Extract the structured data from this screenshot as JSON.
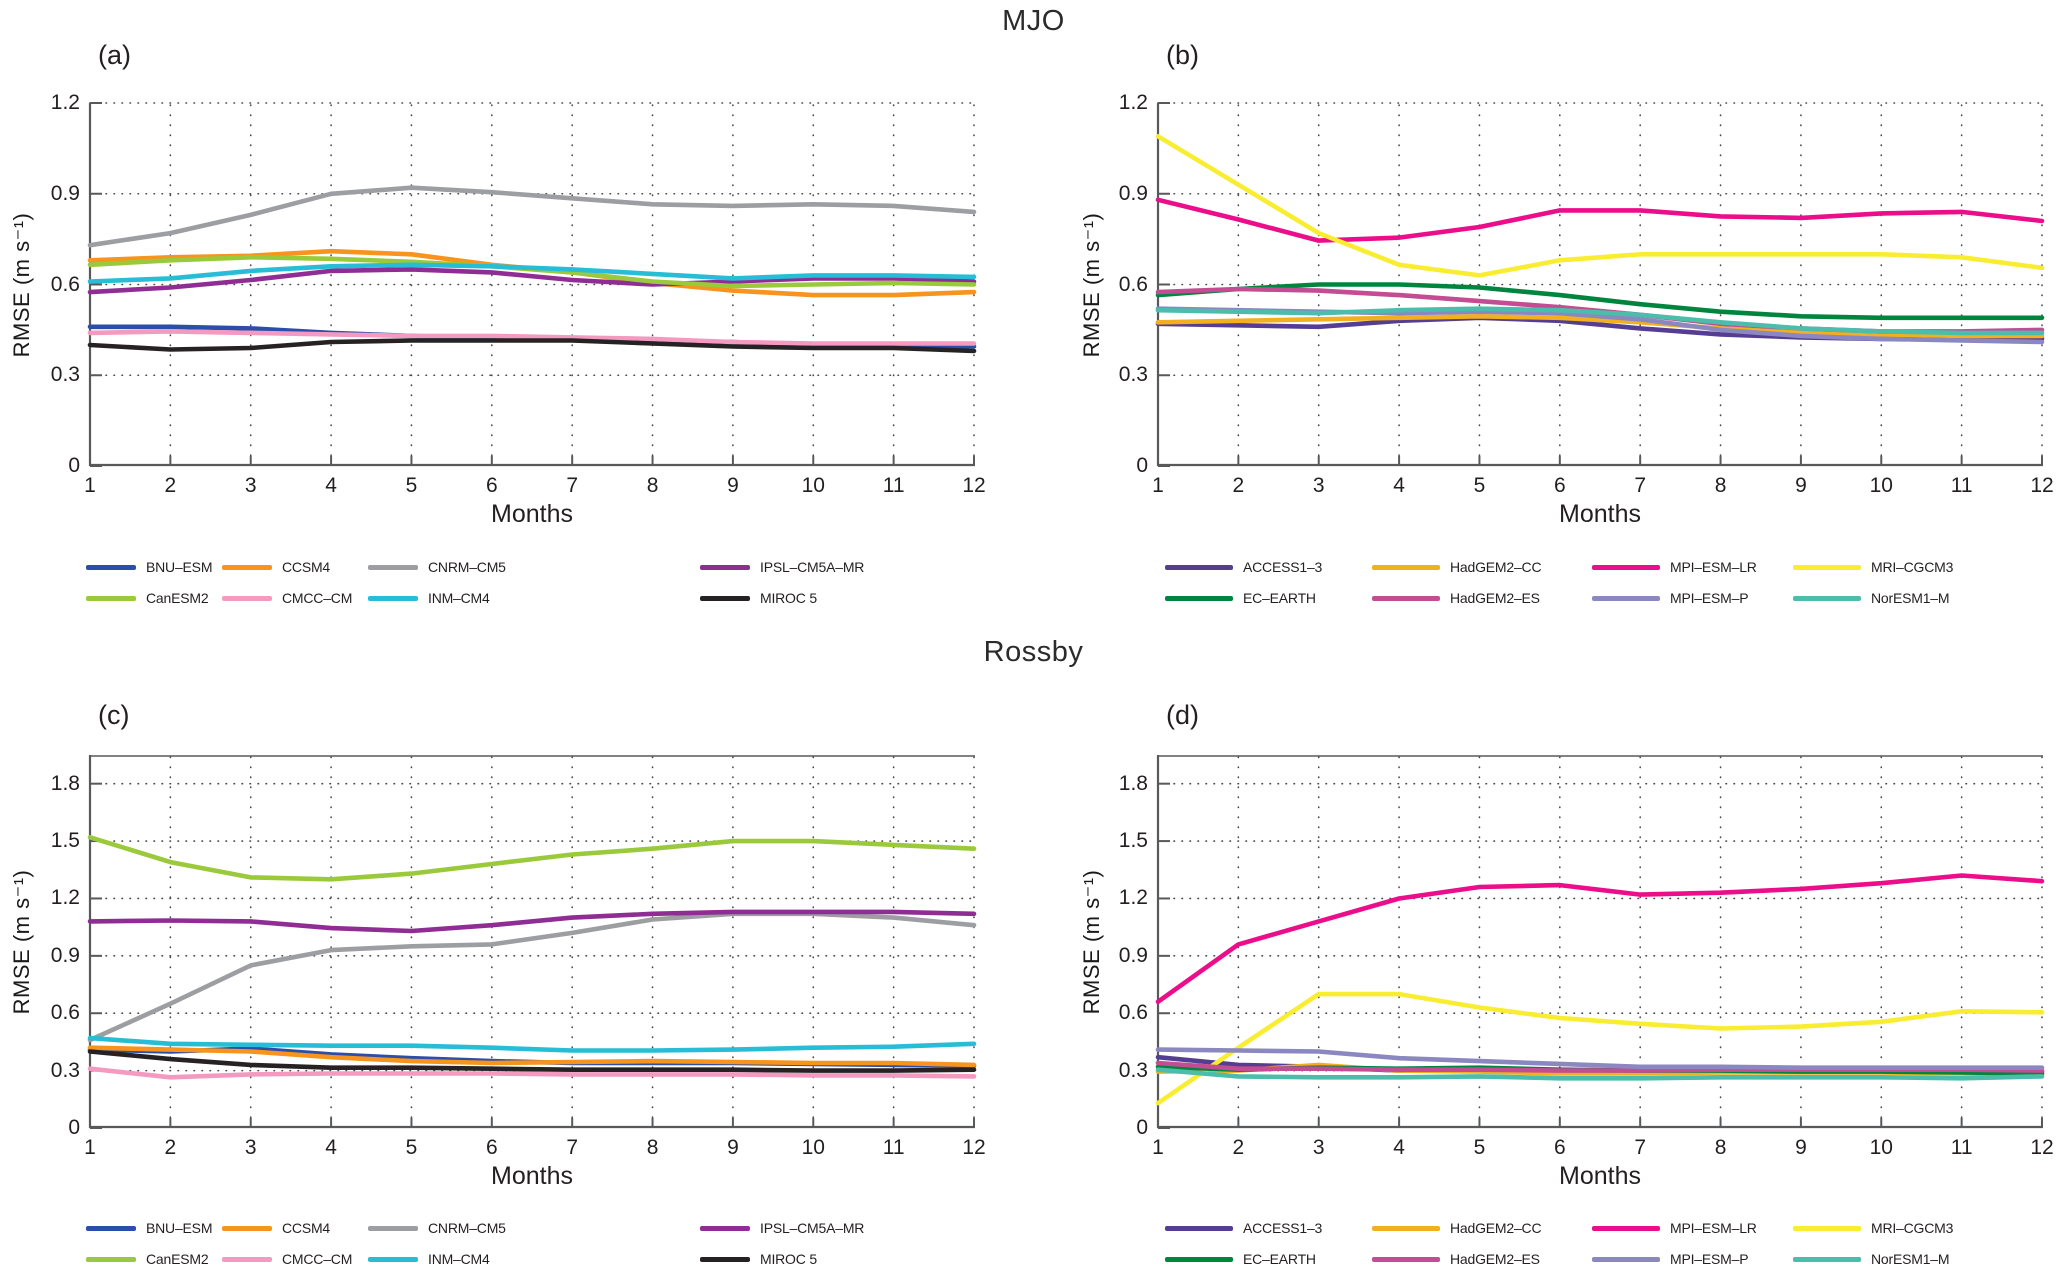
{
  "titles": [
    {
      "text": "MJO"
    },
    {
      "text": "Rossby"
    }
  ],
  "axis": {
    "xlabel": "Months",
    "ylabel": "RMSE (m s⁻¹)"
  },
  "colors": {
    "axis_line": "#58595b",
    "grid_dots": "#4a4a4a",
    "text": "#231f20"
  },
  "chart_data": [
    {
      "id": "a",
      "panel_label": "(a)",
      "section": "MJO",
      "type": "line",
      "x": [
        1,
        2,
        3,
        4,
        5,
        6,
        7,
        8,
        9,
        10,
        11,
        12
      ],
      "xtick_labels": [
        "1",
        "2",
        "3",
        "4",
        "5",
        "6",
        "7",
        "8",
        "9",
        "10",
        "11",
        "12"
      ],
      "xlabel": "Months",
      "ylabel": "RMSE (m s⁻¹)",
      "ylim": [
        0,
        1.2
      ],
      "yticks": [
        0,
        0.3,
        0.6,
        0.9,
        1.2
      ],
      "ytick_labels": [
        "0",
        "0.3",
        "0.6",
        "0.9",
        "1.2"
      ],
      "grid": true,
      "legend_position": "below",
      "series": [
        {
          "name": "BNU–ESM",
          "color": "#2b4ea8",
          "values": [
            0.46,
            0.46,
            0.455,
            0.44,
            0.43,
            0.42,
            0.42,
            0.415,
            0.41,
            0.4,
            0.4,
            0.395
          ]
        },
        {
          "name": "CCSM4",
          "color": "#f7941d",
          "values": [
            0.68,
            0.69,
            0.695,
            0.71,
            0.7,
            0.665,
            0.64,
            0.605,
            0.58,
            0.565,
            0.565,
            0.575
          ]
        },
        {
          "name": "CNRM–CM5",
          "color": "#9c9ea1",
          "values": [
            0.73,
            0.77,
            0.83,
            0.9,
            0.92,
            0.905,
            0.885,
            0.865,
            0.86,
            0.865,
            0.86,
            0.84
          ]
        },
        {
          "name": "IPSL–CM5A–MR",
          "color": "#8f2d94",
          "values": [
            0.575,
            0.59,
            0.615,
            0.645,
            0.65,
            0.64,
            0.615,
            0.6,
            0.61,
            0.62,
            0.62,
            0.61
          ]
        },
        {
          "name": "CanESM2",
          "color": "#9aca3c",
          "values": [
            0.665,
            0.68,
            0.69,
            0.685,
            0.675,
            0.66,
            0.64,
            0.61,
            0.595,
            0.6,
            0.605,
            0.6
          ]
        },
        {
          "name": "CMCC–CM",
          "color": "#f49ac1",
          "values": [
            0.44,
            0.445,
            0.44,
            0.435,
            0.43,
            0.43,
            0.425,
            0.42,
            0.41,
            0.405,
            0.405,
            0.405
          ]
        },
        {
          "name": "INM–CM4",
          "color": "#27bdd6",
          "values": [
            0.61,
            0.62,
            0.645,
            0.66,
            0.665,
            0.66,
            0.65,
            0.635,
            0.62,
            0.63,
            0.63,
            0.625
          ]
        },
        {
          "name": "MIROC 5",
          "color": "#262223",
          "values": [
            0.4,
            0.385,
            0.39,
            0.41,
            0.415,
            0.415,
            0.415,
            0.405,
            0.395,
            0.39,
            0.39,
            0.38
          ]
        }
      ]
    },
    {
      "id": "b",
      "panel_label": "(b)",
      "section": "MJO",
      "type": "line",
      "x": [
        1,
        2,
        3,
        4,
        5,
        6,
        7,
        8,
        9,
        10,
        11,
        12
      ],
      "xtick_labels": [
        "1",
        "2",
        "3",
        "4",
        "5",
        "6",
        "7",
        "8",
        "9",
        "10",
        "11",
        "12"
      ],
      "xlabel": "Months",
      "ylabel": "RMSE (m s⁻¹)",
      "ylim": [
        0,
        1.2
      ],
      "yticks": [
        0,
        0.3,
        0.6,
        0.9,
        1.2
      ],
      "ytick_labels": [
        "0",
        "0.3",
        "0.6",
        "0.9",
        "1.2"
      ],
      "grid": true,
      "legend_position": "below",
      "series": [
        {
          "name": "ACCESS1–3",
          "color": "#553d94",
          "values": [
            0.47,
            0.465,
            0.46,
            0.48,
            0.49,
            0.48,
            0.455,
            0.435,
            0.425,
            0.42,
            0.42,
            0.42
          ]
        },
        {
          "name": "HadGEM2–CC",
          "color": "#f2b01e",
          "values": [
            0.475,
            0.48,
            0.485,
            0.49,
            0.495,
            0.49,
            0.475,
            0.455,
            0.44,
            0.435,
            0.43,
            0.43
          ]
        },
        {
          "name": "MPI–ESM–LR",
          "color": "#ec0d8a",
          "values": [
            0.88,
            0.815,
            0.745,
            0.755,
            0.79,
            0.845,
            0.845,
            0.825,
            0.82,
            0.835,
            0.84,
            0.81
          ]
        },
        {
          "name": "MRI–CGCM3",
          "color": "#f9ed32",
          "values": [
            1.09,
            0.93,
            0.77,
            0.665,
            0.63,
            0.68,
            0.7,
            0.7,
            0.7,
            0.7,
            0.69,
            0.655
          ]
        },
        {
          "name": "EC–EARTH",
          "color": "#00853f",
          "values": [
            0.565,
            0.585,
            0.6,
            0.6,
            0.59,
            0.565,
            0.535,
            0.51,
            0.495,
            0.49,
            0.49,
            0.49
          ]
        },
        {
          "name": "HadGEM2–ES",
          "color": "#c24d92",
          "values": [
            0.575,
            0.585,
            0.58,
            0.565,
            0.545,
            0.525,
            0.5,
            0.47,
            0.455,
            0.445,
            0.445,
            0.45
          ]
        },
        {
          "name": "MPI–ESM–P",
          "color": "#8b87c1",
          "values": [
            0.52,
            0.515,
            0.51,
            0.505,
            0.51,
            0.505,
            0.485,
            0.45,
            0.43,
            0.42,
            0.415,
            0.41
          ]
        },
        {
          "name": "NorESM1–M",
          "color": "#4cbcab",
          "values": [
            0.515,
            0.51,
            0.505,
            0.515,
            0.52,
            0.515,
            0.5,
            0.475,
            0.455,
            0.445,
            0.44,
            0.44
          ]
        }
      ]
    },
    {
      "id": "c",
      "panel_label": "(c)",
      "section": "Rossby",
      "type": "line",
      "x": [
        1,
        2,
        3,
        4,
        5,
        6,
        7,
        8,
        9,
        10,
        11,
        12
      ],
      "xtick_labels": [
        "1",
        "2",
        "3",
        "4",
        "5",
        "6",
        "7",
        "8",
        "9",
        "10",
        "11",
        "12"
      ],
      "xlabel": "Months",
      "ylabel": "RMSE (m s⁻¹)",
      "ylim": [
        0,
        1.95
      ],
      "yticks": [
        0,
        0.3,
        0.6,
        0.9,
        1.2,
        1.5,
        1.8
      ],
      "ytick_labels": [
        "0",
        "0.3",
        "0.6",
        "0.9",
        "1.2",
        "1.5",
        "1.8"
      ],
      "grid": true,
      "legend_position": "below",
      "series": [
        {
          "name": "BNU–ESM",
          "color": "#2b4ea8",
          "values": [
            0.41,
            0.4,
            0.415,
            0.385,
            0.365,
            0.35,
            0.34,
            0.34,
            0.34,
            0.335,
            0.33,
            0.325
          ]
        },
        {
          "name": "CCSM4",
          "color": "#f7941d",
          "values": [
            0.42,
            0.41,
            0.4,
            0.37,
            0.35,
            0.34,
            0.345,
            0.35,
            0.345,
            0.34,
            0.34,
            0.33
          ]
        },
        {
          "name": "CNRM–CM5",
          "color": "#9c9ea1",
          "values": [
            0.46,
            0.65,
            0.85,
            0.93,
            0.95,
            0.96,
            1.02,
            1.09,
            1.12,
            1.12,
            1.1,
            1.06
          ]
        },
        {
          "name": "IPSL–CM5A–MR",
          "color": "#8f2d94",
          "values": [
            1.08,
            1.085,
            1.08,
            1.045,
            1.03,
            1.06,
            1.1,
            1.12,
            1.13,
            1.13,
            1.13,
            1.12
          ]
        },
        {
          "name": "CanESM2",
          "color": "#9aca3c",
          "values": [
            1.52,
            1.39,
            1.31,
            1.3,
            1.33,
            1.38,
            1.43,
            1.46,
            1.5,
            1.5,
            1.48,
            1.46
          ]
        },
        {
          "name": "CMCC–CM",
          "color": "#f49ac1",
          "values": [
            0.31,
            0.265,
            0.28,
            0.285,
            0.285,
            0.285,
            0.28,
            0.28,
            0.28,
            0.275,
            0.275,
            0.27
          ]
        },
        {
          "name": "INM–CM4",
          "color": "#27bdd6",
          "values": [
            0.47,
            0.44,
            0.435,
            0.43,
            0.43,
            0.42,
            0.405,
            0.405,
            0.41,
            0.42,
            0.425,
            0.44
          ]
        },
        {
          "name": "MIROC 5",
          "color": "#262223",
          "values": [
            0.4,
            0.36,
            0.33,
            0.315,
            0.315,
            0.31,
            0.305,
            0.305,
            0.305,
            0.3,
            0.3,
            0.305
          ]
        }
      ]
    },
    {
      "id": "d",
      "panel_label": "(d)",
      "section": "Rossby",
      "type": "line",
      "x": [
        1,
        2,
        3,
        4,
        5,
        6,
        7,
        8,
        9,
        10,
        11,
        12
      ],
      "xtick_labels": [
        "1",
        "2",
        "3",
        "4",
        "5",
        "6",
        "7",
        "8",
        "9",
        "10",
        "11",
        "12"
      ],
      "xlabel": "Months",
      "ylabel": "RMSE (m s⁻¹)",
      "ylim": [
        0,
        1.95
      ],
      "yticks": [
        0,
        0.3,
        0.6,
        0.9,
        1.2,
        1.5,
        1.8
      ],
      "ytick_labels": [
        "0",
        "0.3",
        "0.6",
        "0.9",
        "1.2",
        "1.5",
        "1.8"
      ],
      "grid": true,
      "legend_position": "below",
      "series": [
        {
          "name": "ACCESS1–3",
          "color": "#553d94",
          "values": [
            0.37,
            0.33,
            0.32,
            0.3,
            0.3,
            0.3,
            0.29,
            0.295,
            0.3,
            0.3,
            0.3,
            0.295
          ]
        },
        {
          "name": "HadGEM2–CC",
          "color": "#f2b01e",
          "values": [
            0.295,
            0.3,
            0.33,
            0.3,
            0.295,
            0.285,
            0.285,
            0.29,
            0.29,
            0.29,
            0.285,
            0.28
          ]
        },
        {
          "name": "MPI–ESM–LR",
          "color": "#ec0d8a",
          "values": [
            0.66,
            0.96,
            1.08,
            1.2,
            1.26,
            1.27,
            1.22,
            1.23,
            1.25,
            1.28,
            1.32,
            1.29
          ]
        },
        {
          "name": "MRI–CGCM3",
          "color": "#f9ed32",
          "values": [
            0.13,
            0.42,
            0.7,
            0.7,
            0.63,
            0.575,
            0.545,
            0.52,
            0.53,
            0.555,
            0.61,
            0.605
          ]
        },
        {
          "name": "EC–EARTH",
          "color": "#00853f",
          "values": [
            0.32,
            0.305,
            0.315,
            0.31,
            0.315,
            0.305,
            0.3,
            0.3,
            0.295,
            0.295,
            0.29,
            0.285
          ]
        },
        {
          "name": "HadGEM2–ES",
          "color": "#c24d92",
          "values": [
            0.34,
            0.31,
            0.31,
            0.305,
            0.305,
            0.3,
            0.3,
            0.305,
            0.305,
            0.305,
            0.305,
            0.3
          ]
        },
        {
          "name": "MPI–ESM–P",
          "color": "#8b87c1",
          "values": [
            0.41,
            0.405,
            0.4,
            0.365,
            0.35,
            0.335,
            0.32,
            0.32,
            0.315,
            0.315,
            0.315,
            0.315
          ]
        },
        {
          "name": "NorESM1–M",
          "color": "#4cbcab",
          "values": [
            0.305,
            0.27,
            0.265,
            0.265,
            0.27,
            0.26,
            0.26,
            0.265,
            0.265,
            0.265,
            0.26,
            0.27
          ]
        }
      ]
    }
  ]
}
